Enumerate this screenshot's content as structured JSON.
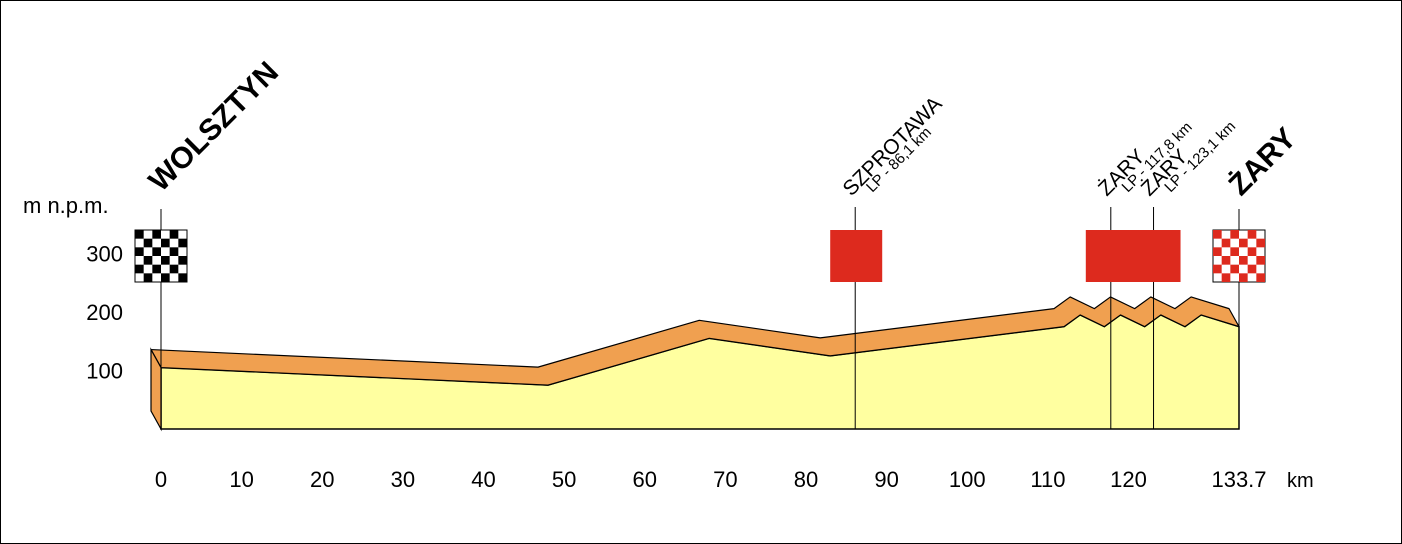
{
  "chart_data": {
    "type": "area",
    "title": "",
    "xlabel": "",
    "ylabel": "m n.p.m.",
    "x_unit": "km",
    "x_ticks": [
      "0",
      "10",
      "20",
      "30",
      "40",
      "50",
      "60",
      "70",
      "80",
      "90",
      "100",
      "110",
      "120",
      "133.7"
    ],
    "y_ticks": [
      "100",
      "200",
      "300"
    ],
    "xlim": [
      0,
      133.7
    ],
    "ylim": [
      0,
      300
    ],
    "profile": [
      {
        "km": 0,
        "alt": 105
      },
      {
        "km": 48,
        "alt": 75
      },
      {
        "km": 68,
        "alt": 155
      },
      {
        "km": 83,
        "alt": 125
      },
      {
        "km": 112,
        "alt": 175
      },
      {
        "km": 114,
        "alt": 195
      },
      {
        "km": 117,
        "alt": 175
      },
      {
        "km": 119,
        "alt": 195
      },
      {
        "km": 122,
        "alt": 175
      },
      {
        "km": 124,
        "alt": 195
      },
      {
        "km": 127,
        "alt": 175
      },
      {
        "km": 129,
        "alt": 195
      },
      {
        "km": 133.7,
        "alt": 175
      }
    ],
    "start": {
      "name": "WOLSZTYN",
      "km": 0
    },
    "finish": {
      "name": "ŻARY",
      "km": 133.7
    },
    "sprints": [
      {
        "town": "SZPROTAWA",
        "label": "LP - 86,1 km",
        "km": 86.1
      },
      {
        "town": "ŻARY",
        "label": "LP - 117,8 km",
        "km": 117.8
      },
      {
        "town": "ŻARY",
        "label": "LP - 123,1 km",
        "km": 123.1
      }
    ],
    "colors": {
      "surface": "#f0a050",
      "fill": "#ffffa0",
      "sprint": "#dd2a1e",
      "checker_dark": "#000000",
      "checker_finish": "#dd2a1e"
    }
  }
}
